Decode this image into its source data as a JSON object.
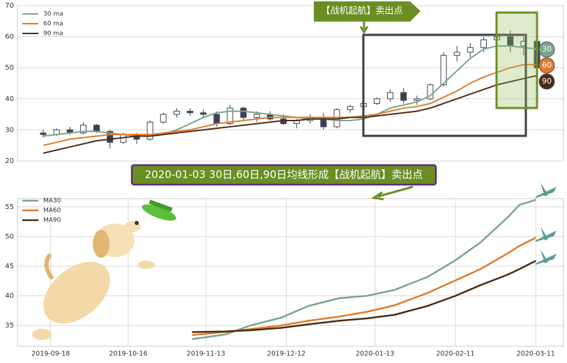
{
  "chart_data": [
    {
      "type": "candlestick",
      "ylim": [
        20,
        70
      ],
      "yticks": [
        20,
        30,
        40,
        50,
        60,
        70
      ],
      "grid": true,
      "legend": "upper left",
      "candle_color": "#3b4252",
      "open": [
        29,
        28.5,
        30,
        29,
        31.5,
        29.5,
        26,
        28.5,
        27,
        32.5,
        35,
        36,
        35.5,
        35,
        32,
        37,
        34,
        35,
        33.5,
        32,
        33,
        34,
        31,
        36.5,
        37.5,
        38.5,
        40,
        42,
        39.5,
        40,
        44.5,
        54,
        55,
        56.5,
        59,
        60,
        57,
        58.5
      ],
      "high": [
        30,
        30.5,
        31,
        32.5,
        32,
        30,
        29,
        29,
        33,
        35.5,
        37,
        37,
        36.5,
        36,
        38,
        37.5,
        36,
        36,
        35,
        33.5,
        35,
        35.5,
        37,
        38,
        39,
        40.5,
        43,
        43.5,
        41,
        45,
        55,
        57,
        58,
        60,
        63,
        62,
        60,
        59
      ],
      "low": [
        27.5,
        28,
        28.5,
        28.5,
        29,
        24,
        25.5,
        25.5,
        26.5,
        32,
        34,
        34.5,
        34,
        31,
        31.5,
        33,
        32.5,
        33,
        31.5,
        30.5,
        32,
        30,
        30.5,
        35.5,
        36.5,
        38,
        39,
        38.5,
        38,
        39.5,
        44,
        52,
        53,
        55,
        57,
        55,
        54,
        47
      ],
      "close": [
        28.5,
        30,
        29,
        31.5,
        29.5,
        26,
        28.5,
        27,
        32.5,
        35,
        36,
        35.5,
        35,
        32,
        37,
        34,
        35,
        33.5,
        32,
        33,
        34,
        31,
        36.5,
        37.5,
        38.5,
        40,
        42,
        39.5,
        40,
        44.5,
        54,
        55,
        56.5,
        59,
        60,
        57,
        58.5,
        50
      ],
      "series": [
        {
          "name": "30 ma",
          "color": "#7aa58a",
          "values": [
            28,
            28.5,
            29,
            29.5,
            29.5,
            29,
            28.5,
            28,
            28,
            28.5,
            30,
            32,
            34,
            35.5,
            36,
            36,
            35.5,
            35,
            34.5,
            34,
            33.5,
            33.5,
            33,
            33,
            33.5,
            35,
            37,
            38,
            39,
            41,
            45,
            49,
            53,
            56,
            57,
            57,
            56.5,
            56
          ]
        },
        {
          "name": "60 ma",
          "color": "#e07a2a",
          "values": [
            25,
            26,
            27,
            27.5,
            28,
            28.5,
            28.5,
            28.5,
            28.5,
            29,
            29.5,
            30,
            31,
            32,
            32.5,
            33,
            33.5,
            34,
            34,
            34,
            34,
            34,
            34,
            34,
            34.5,
            35,
            36,
            37,
            37.5,
            38.5,
            40.5,
            42.5,
            45,
            47,
            48.5,
            50,
            51,
            51
          ]
        },
        {
          "name": "90 ma",
          "color": "#4a2c16",
          "values": [
            22.5,
            23.5,
            24.5,
            25.5,
            26.5,
            27,
            27.5,
            28,
            28,
            28.5,
            29,
            29.5,
            30,
            30.5,
            31,
            31.5,
            32,
            32.5,
            33,
            33,
            33.5,
            33.5,
            33.5,
            34,
            34,
            34.5,
            35,
            35.5,
            36,
            37,
            38.5,
            40,
            41.5,
            43,
            44.5,
            45.5,
            46.5,
            47.5
          ]
        }
      ],
      "annotations": [
        "【战机起航】卖出点",
        "30",
        "60",
        "90"
      ]
    },
    {
      "type": "line",
      "title": "2020-01-03 30日,60日,90日均线形成【战机起航】卖出点",
      "x": [
        "2019-11-08",
        "2019-11-20",
        "2019-11-29",
        "2019-12-10",
        "2019-12-20",
        "2019-12-31",
        "2020-01-10",
        "2020-01-20",
        "2020-02-01",
        "2020-02-11",
        "2020-02-20",
        "2020-03-01",
        "2020-03-05",
        "2020-03-11"
      ],
      "xlim": [
        "2019-09-06",
        "2020-03-21"
      ],
      "xticks": [
        "2019-09-18",
        "2019-10-16",
        "2019-11-13",
        "2019-12-12",
        "2020-01-13",
        "2020-02-11",
        "2020-03-11"
      ],
      "ylim": [
        31.5,
        56.4
      ],
      "yticks": [
        35,
        40,
        45,
        50,
        55
      ],
      "grid": true,
      "legend": "upper left",
      "series": [
        {
          "name": "MA30",
          "color": "#7aa58a",
          "values": [
            32.7,
            33.5,
            35.0,
            36.3,
            38.3,
            39.6,
            40.0,
            41.0,
            43.2,
            46.0,
            49.0,
            53.3,
            55.3,
            56.2
          ]
        },
        {
          "name": "MA60",
          "color": "#e07a2a",
          "values": [
            33.4,
            33.9,
            34.4,
            35.0,
            35.8,
            36.5,
            37.3,
            38.4,
            40.5,
            42.6,
            44.5,
            47.2,
            48.4,
            49.8
          ]
        },
        {
          "name": "MA90",
          "color": "#4a2c16",
          "values": [
            33.9,
            34.0,
            34.2,
            34.6,
            35.2,
            35.8,
            36.2,
            36.8,
            38.3,
            40.0,
            41.8,
            43.6,
            44.5,
            45.9
          ]
        }
      ]
    }
  ]
}
